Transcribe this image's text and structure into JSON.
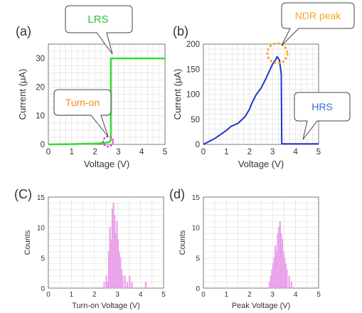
{
  "colors": {
    "lrs_line": "#33dd33",
    "ndr_line": "#2233cc",
    "hist_fill": "#f0b8f0",
    "hist_stroke": "#e080e0",
    "lrs_text": "#2fc22f",
    "turnon_text": "#f28b1c",
    "ndr_text": "#f5a623",
    "hrs_text": "#2f6fd6",
    "turnon_circle": "#cc33cc",
    "peak_circle": "#f5a623"
  },
  "panels": {
    "a": {
      "label": "(a)"
    },
    "b": {
      "label": "(b)"
    },
    "c": {
      "label": "(C)"
    },
    "d": {
      "label": "(d)"
    }
  },
  "callouts": {
    "lrs": "LRS",
    "turn_on": "Turn-on",
    "ndr_peak": "NDR peak",
    "hrs": "HRS"
  },
  "chart_data": [
    {
      "id": "a",
      "type": "line",
      "xlabel": "Voltage (V)",
      "ylabel": "Current (μA)",
      "xlim": [
        0,
        5
      ],
      "ylim": [
        0,
        35
      ],
      "xticks": [
        0,
        1,
        2,
        3,
        4,
        5
      ],
      "yticks": [
        0,
        10,
        20,
        30
      ],
      "grid": true,
      "series": [
        {
          "x": [
            0,
            1,
            2,
            2.4,
            2.6,
            2.65,
            2.68,
            2.68,
            3,
            4,
            5
          ],
          "y": [
            0,
            0.1,
            0.3,
            0.5,
            0.8,
            1.2,
            1.5,
            30,
            30,
            30,
            30
          ]
        }
      ]
    },
    {
      "id": "b",
      "type": "line",
      "xlabel": "Voltage (V)",
      "ylabel": "Current (μA)",
      "xlim": [
        0,
        5
      ],
      "ylim": [
        0,
        200
      ],
      "xticks": [
        0,
        1,
        2,
        3,
        4,
        5
      ],
      "yticks": [
        0,
        50,
        100,
        150,
        200
      ],
      "grid": true,
      "series": [
        {
          "x": [
            0,
            0.5,
            1.0,
            1.2,
            1.5,
            1.8,
            2.0,
            2.1,
            2.3,
            2.5,
            2.7,
            2.9,
            3.0,
            3.15,
            3.2,
            3.3,
            3.38,
            3.4,
            3.5,
            4.0,
            5.0
          ],
          "y": [
            0,
            12,
            28,
            36,
            42,
            55,
            70,
            82,
            100,
            112,
            130,
            150,
            160,
            170,
            175,
            168,
            140,
            2,
            1,
            1,
            1
          ]
        }
      ]
    },
    {
      "id": "c",
      "type": "bar",
      "xlabel": "Turn-on Voltage (V)",
      "ylabel": "Counts",
      "xlim": [
        0,
        5
      ],
      "ylim": [
        0,
        15
      ],
      "xticks": [
        0,
        1,
        2,
        3,
        4,
        5
      ],
      "yticks": [
        0,
        5,
        10,
        15
      ],
      "grid": true,
      "bin_width": 0.05,
      "x": [
        2.4,
        2.5,
        2.55,
        2.6,
        2.65,
        2.7,
        2.75,
        2.8,
        2.85,
        2.9,
        2.95,
        3.0,
        3.05,
        3.1,
        3.15,
        3.2,
        3.3,
        3.4,
        3.5,
        3.6,
        4.2
      ],
      "values": [
        1,
        2,
        1,
        6,
        10,
        8,
        13,
        14,
        12,
        9,
        11,
        8,
        6,
        5,
        3,
        2,
        2,
        1,
        2,
        1,
        1
      ]
    },
    {
      "id": "d",
      "type": "bar",
      "xlabel": "Peak Voltage (V)",
      "ylabel": "Counts",
      "xlim": [
        0,
        5
      ],
      "ylim": [
        0,
        15
      ],
      "xticks": [
        0,
        1,
        2,
        3,
        4,
        5
      ],
      "yticks": [
        0,
        5,
        10,
        15
      ],
      "grid": true,
      "bin_width": 0.05,
      "x": [
        2.85,
        2.9,
        2.95,
        3.0,
        3.05,
        3.1,
        3.15,
        3.2,
        3.25,
        3.3,
        3.35,
        3.4,
        3.45,
        3.5,
        3.55,
        3.6,
        3.7,
        3.8
      ],
      "values": [
        1,
        2,
        3,
        4,
        5,
        7,
        6,
        9,
        10,
        11,
        9,
        8,
        6,
        5,
        4,
        3,
        2,
        1
      ]
    }
  ]
}
